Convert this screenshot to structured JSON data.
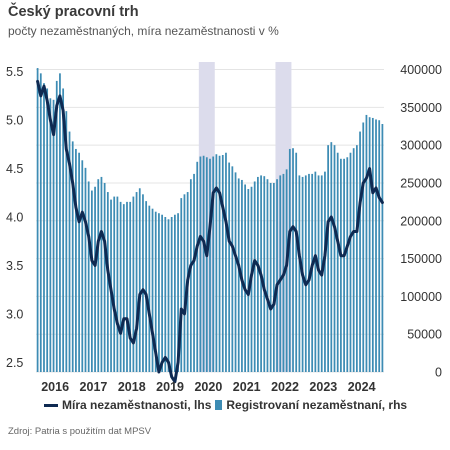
{
  "header": {
    "title": "Český pracovní trh",
    "subtitle": "počty nezaměstnaných, míra nezaměstnanosti v %"
  },
  "legend": {
    "rate_label": "Míra nezaměstnanosti, lhs",
    "registered_label": "Registrovaní nezaměstnaní, rhs"
  },
  "source": "Zdroj: Patria s použitím dat MPSV",
  "colors": {
    "line": "#0f2a52",
    "bars": "#3d8cb4",
    "shade": "#dcdcec",
    "grid": "#e4e4e4",
    "text": "#333333"
  },
  "chart_data": {
    "type": "bar",
    "combo": "bar + line (dual axis)",
    "x_labels": [
      "2016",
      "2017",
      "2018",
      "2019",
      "2020",
      "2021",
      "2022",
      "2023",
      "2024"
    ],
    "y_left": {
      "ticks": [
        "5.5",
        "5.0",
        "4.5",
        "4.0",
        "3.5",
        "3.0",
        "2.5"
      ],
      "lim": [
        2.4,
        5.6
      ]
    },
    "y_right": {
      "ticks": [
        "400000",
        "350000",
        "300000",
        "250000",
        "200000",
        "150000",
        "100000",
        "50000",
        "0"
      ],
      "lim": [
        0,
        410000
      ]
    },
    "shaded_periods": [
      [
        "2020-04",
        "2020-08"
      ],
      [
        "2022-04",
        "2022-08"
      ]
    ],
    "series": [
      {
        "name": "Míra nezaměstnanosti, lhs",
        "axis": "left",
        "type": "line",
        "start": "2016-01",
        "values": [
          5.4,
          5.25,
          5.35,
          5.2,
          5.0,
          4.85,
          5.15,
          5.25,
          5.1,
          4.7,
          4.55,
          4.35,
          4.1,
          3.95,
          4.05,
          3.95,
          3.8,
          3.55,
          3.5,
          3.75,
          3.85,
          3.75,
          3.45,
          3.25,
          3.05,
          2.9,
          2.8,
          2.95,
          2.95,
          2.75,
          2.7,
          2.85,
          3.2,
          3.25,
          3.2,
          3.0,
          2.8,
          2.6,
          2.4,
          2.5,
          2.55,
          2.5,
          2.35,
          2.3,
          2.5,
          3.05,
          3.0,
          3.35,
          3.5,
          3.55,
          3.7,
          3.8,
          3.75,
          3.6,
          3.9,
          4.25,
          4.3,
          4.25,
          4.1,
          3.95,
          3.75,
          3.7,
          3.6,
          3.5,
          3.35,
          3.25,
          3.2,
          3.4,
          3.55,
          3.5,
          3.4,
          3.25,
          3.15,
          3.05,
          3.1,
          3.3,
          3.35,
          3.4,
          3.5,
          3.85,
          3.9,
          3.85,
          3.6,
          3.4,
          3.3,
          3.35,
          3.5,
          3.6,
          3.45,
          3.4,
          3.6,
          3.95,
          4.0,
          3.9,
          3.75,
          3.6,
          3.6,
          3.7,
          3.8,
          3.85,
          3.85,
          4.15,
          4.35,
          4.4,
          4.5,
          4.25,
          4.3,
          4.2,
          4.15
        ]
      },
      {
        "name": "Registrovaní nezaměstnaní, rhs",
        "axis": "right",
        "type": "bar",
        "start": "2016-01",
        "values": [
          402000,
          395000,
          382000,
          375000,
          362000,
          360000,
          385000,
          395000,
          375000,
          345000,
          318000,
          305000,
          295000,
          290000,
          280000,
          270000,
          252000,
          240000,
          245000,
          255000,
          258000,
          250000,
          238000,
          228000,
          232000,
          232000,
          225000,
          222000,
          225000,
          225000,
          232000,
          238000,
          243000,
          235000,
          226000,
          220000,
          216000,
          212000,
          210000,
          208000,
          205000,
          202000,
          205000,
          208000,
          210000,
          230000,
          235000,
          238000,
          255000,
          262000,
          278000,
          285000,
          286000,
          284000,
          282000,
          285000,
          288000,
          286000,
          287000,
          290000,
          277000,
          272000,
          264000,
          256000,
          254000,
          248000,
          242000,
          245000,
          252000,
          258000,
          260000,
          259000,
          255000,
          250000,
          250000,
          255000,
          260000,
          262000,
          268000,
          295000,
          296000,
          290000,
          260000,
          258000,
          260000,
          262000,
          262000,
          265000,
          260000,
          260000,
          265000,
          300000,
          304000,
          300000,
          290000,
          282000,
          282000,
          284000,
          290000,
          296000,
          300000,
          318000,
          330000,
          340000,
          337000,
          336000,
          334000,
          333000,
          328000
        ]
      }
    ]
  }
}
